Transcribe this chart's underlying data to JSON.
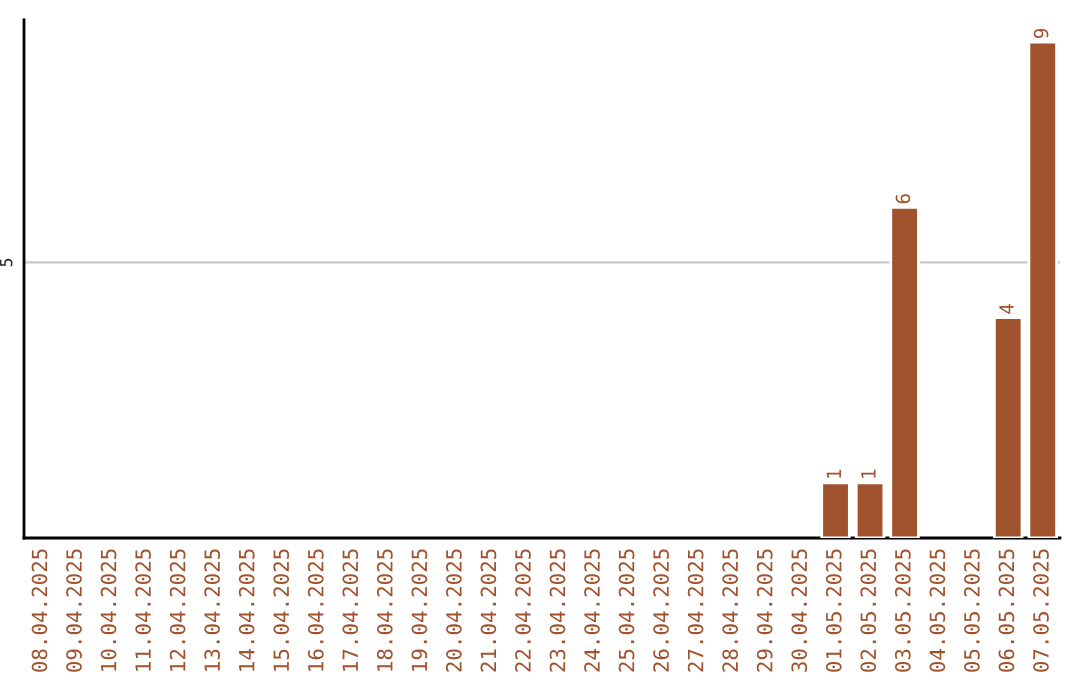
{
  "chart_data": {
    "type": "bar",
    "ylim": [
      0,
      9.4
    ],
    "categories": [
      "08.04.2025",
      "09.04.2025",
      "10.04.2025",
      "11.04.2025",
      "12.04.2025",
      "13.04.2025",
      "14.04.2025",
      "15.04.2025",
      "16.04.2025",
      "17.04.2025",
      "18.04.2025",
      "19.04.2025",
      "20.04.2025",
      "21.04.2025",
      "22.04.2025",
      "23.04.2025",
      "24.04.2025",
      "25.04.2025",
      "26.04.2025",
      "27.04.2025",
      "28.04.2025",
      "29.04.2025",
      "30.04.2025",
      "01.05.2025",
      "02.05.2025",
      "03.05.2025",
      "04.05.2025",
      "05.05.2025",
      "06.05.2025",
      "07.05.2025"
    ],
    "values": [
      null,
      null,
      null,
      null,
      null,
      null,
      null,
      null,
      null,
      null,
      null,
      null,
      null,
      null,
      null,
      null,
      null,
      null,
      null,
      null,
      null,
      null,
      null,
      1,
      1,
      6,
      null,
      null,
      4,
      9
    ],
    "data_labels": true,
    "color": "#a0522d",
    "ref_lines": [
      {
        "axis": "y",
        "value": 5,
        "label": "5",
        "color": "#c8c8c8"
      }
    ]
  }
}
